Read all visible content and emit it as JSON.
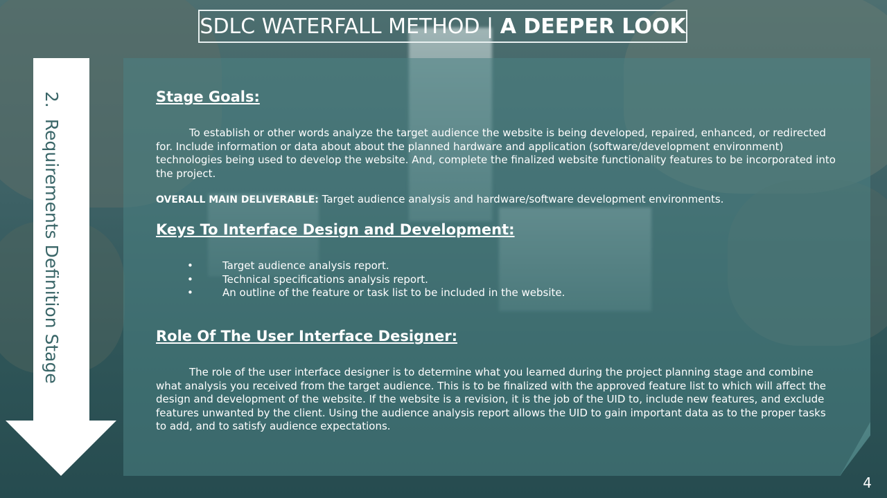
{
  "title": {
    "normal": "SDLC WATERFALL METHOD | ",
    "bold": "A DEEPER LOOK"
  },
  "side_label": "2.  Requirements Definition Stage",
  "sections": {
    "goals_heading": "Stage Goals:",
    "goals_text": "To establish or other words analyze the target audience the website is being developed, repaired, enhanced, or redirected for. Include information or data about about the planned hardware and application (software/development environment) technologies being used to develop the website. And, complete the finalized website functionality features to be incorporated into the project.",
    "deliverable_label": "OVERALL MAIN DELIVERABLE:",
    "deliverable_text": " Target audience analysis and hardware/software development environments.",
    "keys_heading": "Keys To Interface Design and Development:",
    "keys_items": [
      "Target audience analysis report.",
      "Technical specifications analysis report.",
      "An outline of the feature or task list to be included in the website."
    ],
    "role_heading": "Role Of The User Interface Designer:",
    "role_text": "The role of the user interface designer is to determine what you learned during the project planning stage and combine what analysis you received from the target audience. This is to be finalized with the approved feature list to which will affect the design and development of the website. If the website is a revision, it is the job of the UID to, include new features, and exclude features unwanted by the client. Using the audience analysis report allows the UID to gain important data as to the proper tasks to add, and to satisfy audience expectations."
  },
  "bullet_char": "•",
  "page_number": "4",
  "colors": {
    "arrow": "#ffffff",
    "arrow_text": "#3a6668",
    "panel": "#4b8284"
  }
}
